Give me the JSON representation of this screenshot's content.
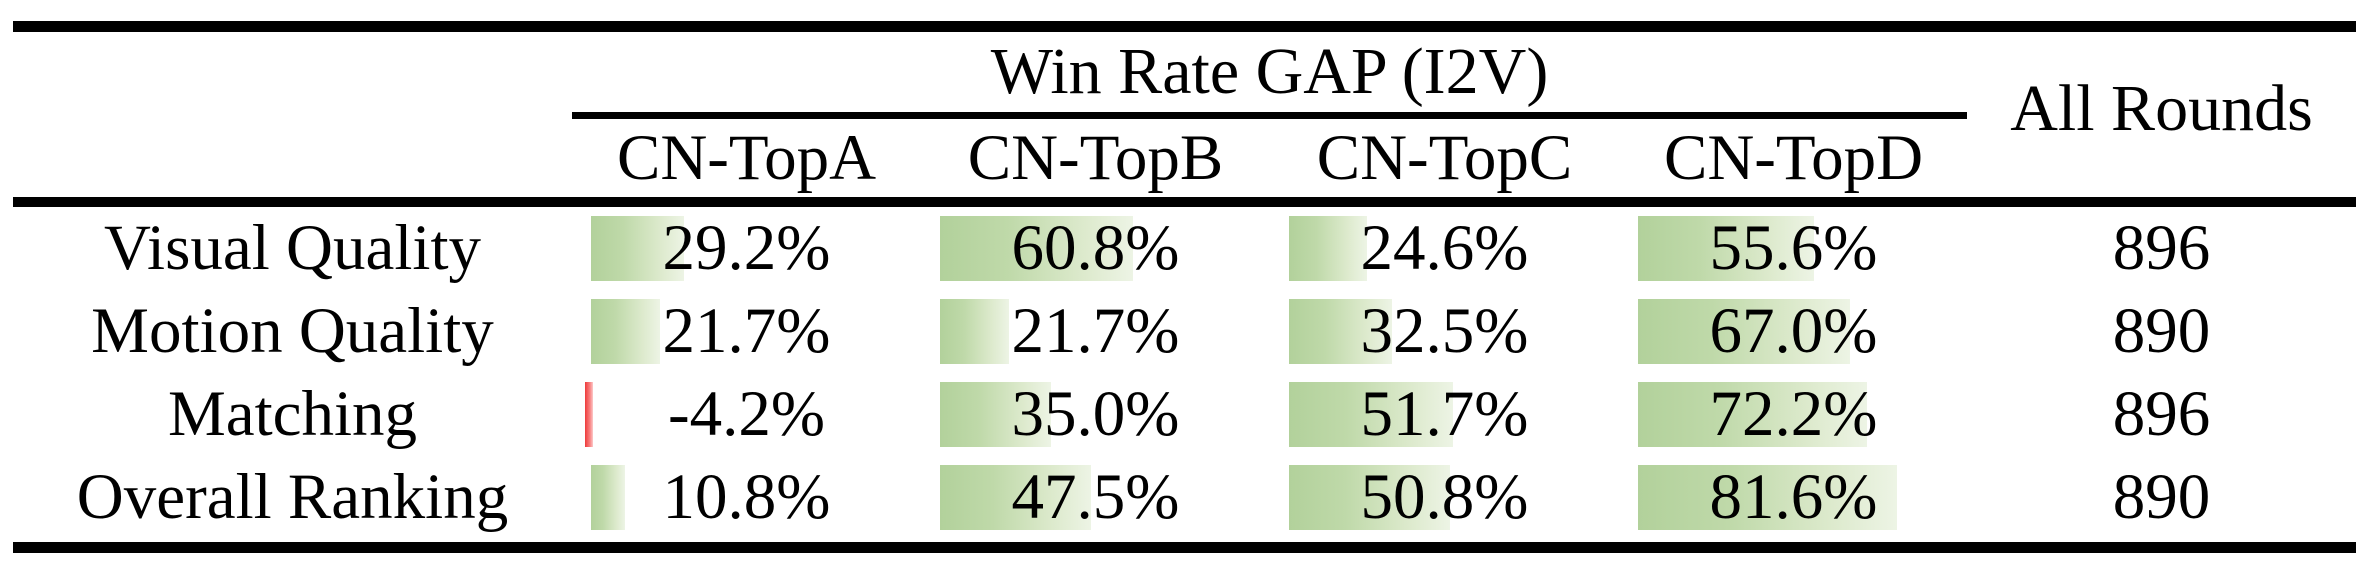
{
  "table": {
    "group_header": "Win Rate GAP (I2V)",
    "all_rounds_header": "All Rounds",
    "columns": [
      "CN-TopA",
      "CN-TopB",
      "CN-TopC",
      "CN-TopD"
    ],
    "rows": [
      {
        "label": "Visual Quality",
        "values": [
          "29.2%",
          "60.8%",
          "24.6%",
          "55.6%"
        ],
        "numeric": [
          29.2,
          60.8,
          24.6,
          55.6
        ],
        "all_rounds": "896"
      },
      {
        "label": "Motion Quality",
        "values": [
          "21.7%",
          "21.7%",
          "32.5%",
          "67.0%"
        ],
        "numeric": [
          21.7,
          21.7,
          32.5,
          67.0
        ],
        "all_rounds": "890"
      },
      {
        "label": "Matching",
        "values": [
          "-4.2%",
          "35.0%",
          "51.7%",
          "72.2%"
        ],
        "numeric": [
          -4.2,
          35.0,
          51.7,
          72.2
        ],
        "all_rounds": "896"
      },
      {
        "label": "Overall Ranking",
        "values": [
          "10.8%",
          "47.5%",
          "50.8%",
          "81.6%"
        ],
        "numeric": [
          10.8,
          47.5,
          50.8,
          81.6
        ],
        "all_rounds": "890"
      }
    ],
    "colors": {
      "positive_bar": "#b5d3a0",
      "positive_bar_fade": "#edf4e5",
      "negative_bar": "#ee3a3a",
      "rule": "#000000"
    }
  },
  "chart_data": {
    "type": "table",
    "title": "Win Rate GAP (I2V)",
    "categories": [
      "Visual Quality",
      "Motion Quality",
      "Matching",
      "Overall Ranking"
    ],
    "series": [
      {
        "name": "CN-TopA",
        "values": [
          29.2,
          21.7,
          -4.2,
          10.8
        ]
      },
      {
        "name": "CN-TopB",
        "values": [
          60.8,
          21.7,
          35.0,
          47.5
        ]
      },
      {
        "name": "CN-TopC",
        "values": [
          24.6,
          32.5,
          51.7,
          50.8
        ]
      },
      {
        "name": "CN-TopD",
        "values": [
          55.6,
          67.0,
          72.2,
          81.6
        ]
      },
      {
        "name": "All Rounds",
        "values": [
          896,
          890,
          896,
          890
        ]
      }
    ],
    "value_unit": "%",
    "layout": "in-cell data bars, green for positive, red for negative"
  }
}
